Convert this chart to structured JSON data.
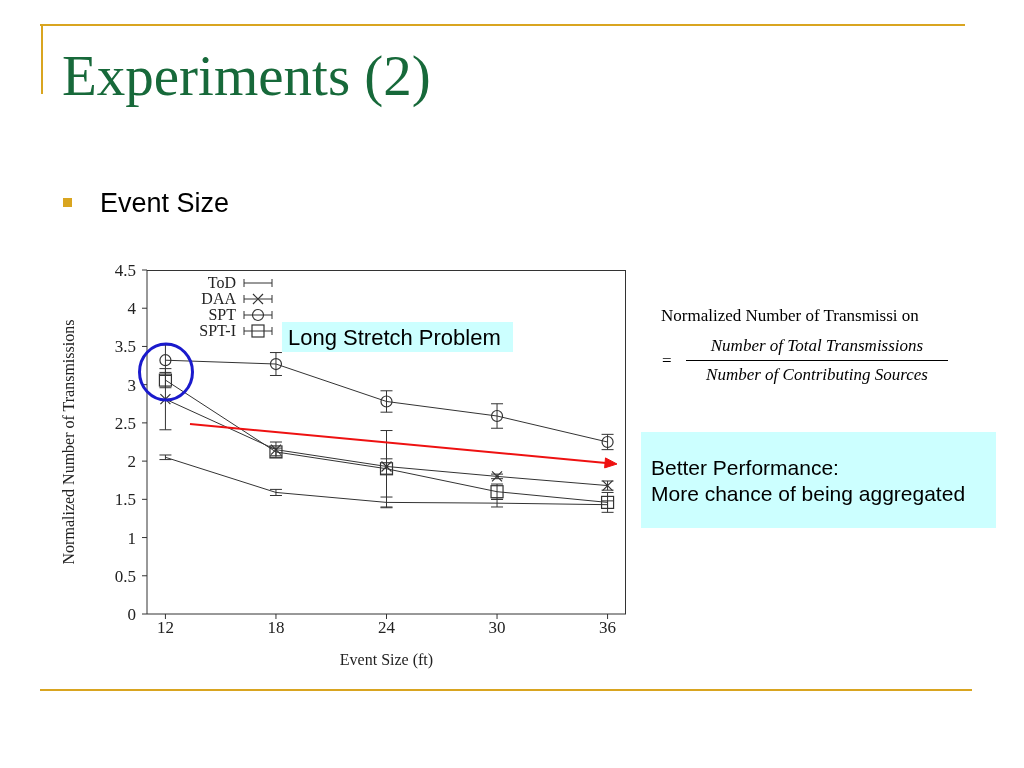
{
  "chart_data": {
    "type": "line",
    "title": "Experiments (2)",
    "subtitle": "Event Size",
    "xlabel": "Event Size (ft)",
    "ylabel": "Normalized Number of Transmissions",
    "x": [
      12,
      18,
      24,
      30,
      36
    ],
    "xlim": [
      11,
      37
    ],
    "xticks": [
      12,
      18,
      24,
      30,
      36
    ],
    "ylim": [
      0,
      4.5
    ],
    "yticks": [
      0,
      0.5,
      1,
      1.5,
      2,
      2.5,
      3,
      3.5,
      4,
      4.5
    ],
    "legend": "top left",
    "series": [
      {
        "name": "ToD",
        "color": "#333333",
        "marker": "none",
        "values": [
          2.05,
          1.59,
          1.46,
          1.45,
          1.43
        ],
        "errors": [
          0.03,
          0.04,
          0.07,
          0.05,
          0.05
        ]
      },
      {
        "name": "DAA",
        "color": "#333333",
        "marker": "cross",
        "values": [
          2.81,
          2.15,
          1.93,
          1.8,
          1.68
        ],
        "errors": [
          0.4,
          0.1,
          0.1,
          0.03,
          0.06
        ]
      },
      {
        "name": "SPT",
        "color": "#333333",
        "marker": "circle",
        "values": [
          3.32,
          3.27,
          2.78,
          2.59,
          2.25
        ],
        "errors": [
          0.2,
          0.15,
          0.14,
          0.16,
          0.1
        ]
      },
      {
        "name": "SPT-I",
        "color": "#333333",
        "marker": "square",
        "values": [
          3.06,
          2.12,
          1.9,
          1.6,
          1.46
        ],
        "errors": [
          0.1,
          0.05,
          0.5,
          0.1,
          0.13
        ]
      }
    ],
    "annotations": [
      "Long Stretch Problem",
      "Normalized Number of Transmissi on",
      "=",
      "Number of Total Transmissions",
      "Number of Contributing Sources",
      "Better Performance:",
      "More chance of being aggregated"
    ]
  }
}
